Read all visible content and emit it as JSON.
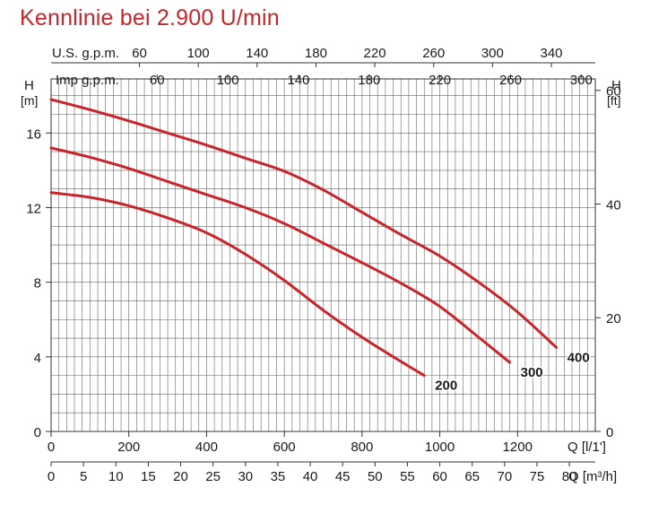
{
  "title": "Kennlinie bei 2.900 U/min",
  "colors": {
    "curve": "#c8252b",
    "grid": "#666666",
    "title": "#c8252b"
  },
  "chart_data": {
    "type": "line",
    "title": "Kennlinie bei 2.900 U/min",
    "grid": true,
    "x": {
      "label": "Q [l/1']",
      "range": [
        0,
        1400
      ],
      "ticks": [
        0,
        200,
        400,
        600,
        800,
        1000,
        1200
      ]
    },
    "x_m3h": {
      "label": "Q [m³/h]",
      "ticks": [
        0,
        5,
        10,
        15,
        20,
        25,
        30,
        35,
        40,
        45,
        50,
        55,
        60,
        65,
        70,
        75,
        80
      ]
    },
    "x_usgpm": {
      "label": "U.S. g.p.m.",
      "ticks": [
        60,
        100,
        140,
        180,
        220,
        260,
        300,
        340
      ]
    },
    "x_impgpm": {
      "label": "Imp g.p.m.",
      "ticks": [
        60,
        100,
        140,
        180,
        220,
        260,
        300
      ]
    },
    "y_left": {
      "label": "H",
      "unit": "[m]",
      "range": [
        0,
        18.9
      ],
      "ticks": [
        0,
        4,
        8,
        12,
        16
      ]
    },
    "y_right": {
      "label": "H",
      "unit": "[ft]",
      "ticks": [
        0,
        20,
        40,
        60
      ]
    },
    "series": [
      {
        "name": "200",
        "x": [
          0,
          100,
          200,
          300,
          400,
          500,
          600,
          700,
          800,
          900,
          960
        ],
        "y": [
          12.8,
          12.55,
          12.1,
          11.45,
          10.65,
          9.5,
          8.1,
          6.5,
          5.05,
          3.75,
          3.0
        ]
      },
      {
        "name": "300",
        "x": [
          0,
          100,
          200,
          300,
          400,
          500,
          600,
          700,
          800,
          900,
          1000,
          1100,
          1180
        ],
        "y": [
          15.2,
          14.7,
          14.1,
          13.4,
          12.7,
          12.0,
          11.15,
          10.1,
          9.05,
          7.95,
          6.7,
          5.05,
          3.7
        ]
      },
      {
        "name": "400",
        "x": [
          0,
          100,
          200,
          300,
          400,
          500,
          600,
          700,
          800,
          900,
          1000,
          1100,
          1200,
          1300
        ],
        "y": [
          17.8,
          17.25,
          16.65,
          16.0,
          15.35,
          14.65,
          13.95,
          12.95,
          11.75,
          10.55,
          9.4,
          8.0,
          6.4,
          4.5
        ]
      }
    ]
  }
}
